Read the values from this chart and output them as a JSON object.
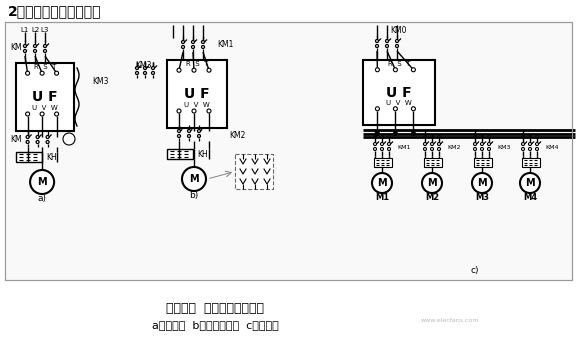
{
  "title": "2．变频器的输出主电路",
  "caption_line1": "图４－２  变频器输出主电路",
  "caption_line2": "a）一控一  b）切换主电路  c）一控多",
  "watermark": "www.elecfans.com",
  "bg_color": "#ffffff",
  "line_color": "#000000",
  "gray_color": "#888888",
  "light_gray": "#cccccc"
}
